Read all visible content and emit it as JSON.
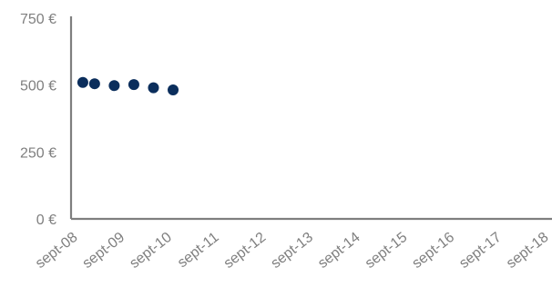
{
  "chart_data": {
    "type": "scatter",
    "x_ticks": [
      "sept-08",
      "sept-09",
      "sept-10",
      "sept-11",
      "sept-12",
      "sept-13",
      "sept-14",
      "sept-15",
      "sept-16",
      "sept-17",
      "sept-18"
    ],
    "y_ticks": [
      "0 €",
      "250 €",
      "500 €",
      "750 €"
    ],
    "ylim": [
      0,
      750
    ],
    "xlim": [
      "2008-09",
      "2018-09"
    ],
    "grid": false,
    "colors": {
      "points": "#0b2e5c",
      "axis": "#7f7f7f",
      "tick_text": "#7f7f7f"
    },
    "points": [
      {
        "x": "2008-12",
        "y": 510
      },
      {
        "x": "2009-03",
        "y": 505
      },
      {
        "x": "2009-08",
        "y": 498
      },
      {
        "x": "2010-01",
        "y": 502
      },
      {
        "x": "2010-06",
        "y": 490
      },
      {
        "x": "2010-11",
        "y": 482
      }
    ]
  }
}
